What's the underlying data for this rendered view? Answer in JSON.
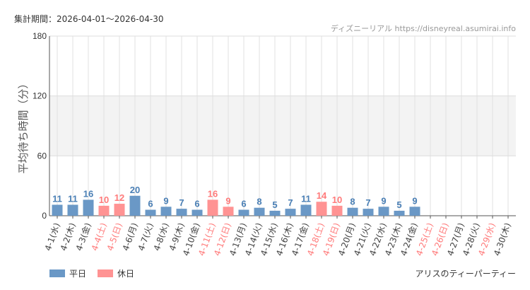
{
  "header": {
    "period": "集計期間：2026-04-01〜2026-04-30",
    "source": "ディズニーリアル https://disneyreal.asumirai.info"
  },
  "footer": {
    "attraction": "アリスのティーパーティー"
  },
  "colors": {
    "weekday": "#6a98c6",
    "holiday": "#ff9393",
    "holiday_text": "#ff7a7a",
    "weekday_text": "#4a7fb5"
  },
  "chart_data": {
    "type": "bar",
    "ylabel": "平均待ち時間（分）",
    "ylim": [
      0,
      180
    ],
    "yticks": [
      0,
      60,
      120,
      180
    ],
    "grid": true,
    "legend_position": "bottom-left",
    "legend": [
      {
        "name": "平日",
        "key": "weekday"
      },
      {
        "name": "休日",
        "key": "holiday"
      }
    ],
    "categories": [
      "4-1(水)",
      "4-2(木)",
      "4-3(金)",
      "4-4(土)",
      "4-5(日)",
      "4-6(月)",
      "4-7(火)",
      "4-8(水)",
      "4-9(木)",
      "4-10(金)",
      "4-11(土)",
      "4-12(日)",
      "4-13(月)",
      "4-14(火)",
      "4-15(水)",
      "4-16(木)",
      "4-17(金)",
      "4-18(土)",
      "4-19(日)",
      "4-20(月)",
      "4-21(火)",
      "4-22(水)",
      "4-23(木)",
      "4-24(金)",
      "4-25(土)",
      "4-26(日)",
      "4-27(月)",
      "4-28(火)",
      "4-29(水)",
      "4-30(木)"
    ],
    "holiday": [
      false,
      false,
      false,
      true,
      true,
      false,
      false,
      false,
      false,
      false,
      true,
      true,
      false,
      false,
      false,
      false,
      false,
      true,
      true,
      false,
      false,
      false,
      false,
      false,
      true,
      true,
      false,
      false,
      true,
      false
    ],
    "values": [
      11,
      11,
      16,
      10,
      12,
      20,
      6,
      9,
      7,
      6,
      16,
      9,
      6,
      8,
      5,
      7,
      11,
      14,
      10,
      8,
      7,
      9,
      5,
      9,
      null,
      null,
      null,
      null,
      null,
      null
    ]
  }
}
